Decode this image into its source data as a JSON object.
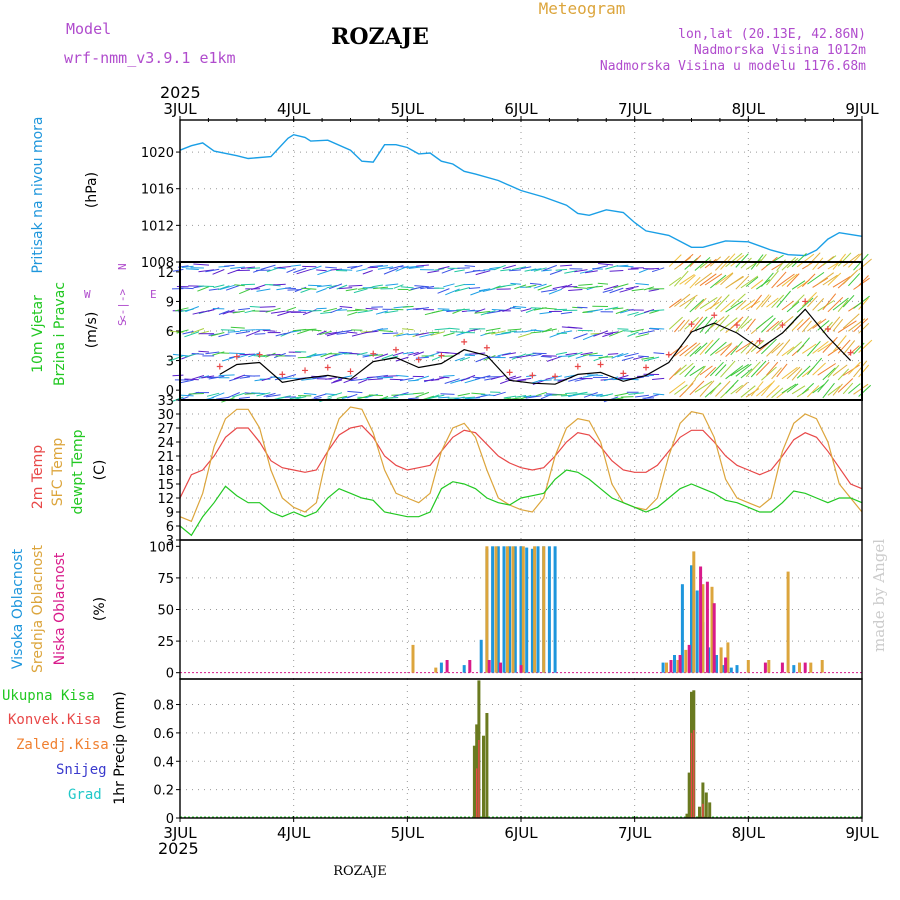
{
  "header": {
    "model_label": "Model",
    "model_value": "wrf-nmm_v3.9.1 e1km",
    "station": "ROZAJE",
    "meteogram": "Meteogram",
    "lonlat": "lon,lat (20.13E, 42.86N)",
    "elevation": "Nadmorska Visina 1012m",
    "model_elevation": "Nadmorska Visina u modelu 1176.68m",
    "year_top": "2025",
    "year_bottom": "2025",
    "footer_station": "ROZAJE",
    "credit": "made by Angel"
  },
  "colors": {
    "pressure": "#1a9fe6",
    "temp2m": "#e84848",
    "sfc": "#dca53c",
    "dewpoint": "#22c822",
    "high_cloud": "#1e96dc",
    "mid_cloud": "#dca53c",
    "low_cloud": "#d81a8a",
    "total_precip": "#22c822",
    "conv_precip": "#e84848",
    "frozen_precip": "#f08030",
    "snow": "#3a3acd",
    "hail": "#20c8c8",
    "wind_label": "#22c822",
    "wind_arrows": [
      "#5a1ecd",
      "#3a52e6",
      "#1ea0e6",
      "#20c8a0",
      "#3cc83c",
      "#a8d040",
      "#e0b040",
      "#f08030",
      "#f0c040"
    ]
  },
  "chart_data": [
    {
      "id": "pressure",
      "type": "line",
      "ylabel": "Pritisak na nivou mora",
      "unit": "(hPa)",
      "ylim": [
        1008,
        1023.5
      ],
      "yticks": [
        "1020",
        "1016",
        "1012",
        "1008"
      ],
      "x_days": [
        "3JUL",
        "4JUL",
        "5JUL",
        "6JUL",
        "7JUL",
        "8JUL",
        "9JUL"
      ],
      "x": [
        0,
        0.1,
        0.2,
        0.3,
        0.5,
        0.6,
        0.8,
        0.95,
        1.0,
        1.1,
        1.15,
        1.3,
        1.5,
        1.6,
        1.7,
        1.8,
        1.9,
        2.0,
        2.1,
        2.2,
        2.3,
        2.4,
        2.5,
        2.6,
        2.8,
        3.0,
        3.2,
        3.4,
        3.5,
        3.6,
        3.75,
        3.9,
        4.0,
        4.1,
        4.3,
        4.5,
        4.6,
        4.8,
        5.0,
        5.2,
        5.35,
        5.5,
        5.6,
        5.7,
        5.8,
        6.0
      ],
      "values": [
        1020.2,
        1020.7,
        1021.0,
        1020.1,
        1019.6,
        1019.3,
        1019.5,
        1021.5,
        1021.9,
        1021.6,
        1021.2,
        1021.3,
        1020.2,
        1019.0,
        1018.9,
        1020.8,
        1020.8,
        1020.5,
        1019.8,
        1019.9,
        1019.0,
        1018.7,
        1017.9,
        1017.6,
        1016.9,
        1015.8,
        1015.1,
        1014.2,
        1013.3,
        1013.1,
        1013.7,
        1013.4,
        1012.3,
        1011.4,
        1010.9,
        1009.6,
        1009.6,
        1010.3,
        1010.2,
        1009.3,
        1008.8,
        1008.7,
        1009.3,
        1010.5,
        1011.2,
        1010.8
      ]
    },
    {
      "id": "wind",
      "type": "line",
      "ylabel": "10m Vjetar",
      "ylabel2": "Brzina i Pravac",
      "unit": "(m/s)",
      "ylim": [
        -1,
        13
      ],
      "yticks": [
        "12",
        "9",
        "6",
        "3",
        "0"
      ],
      "compass": {
        "n": "N",
        "s": "S",
        "w": "W",
        "e": "E",
        "arrows": "<-|->"
      },
      "x": [
        0.35,
        0.5,
        0.7,
        0.9,
        1.1,
        1.3,
        1.5,
        1.7,
        1.9,
        2.1,
        2.3,
        2.5,
        2.7,
        2.9,
        3.1,
        3.3,
        3.5,
        3.7,
        3.9,
        4.1,
        4.3,
        4.5,
        4.7,
        4.9,
        5.1,
        5.3,
        5.5,
        5.7,
        5.9
      ],
      "values": [
        1.6,
        2.6,
        2.8,
        0.8,
        1.2,
        1.5,
        1.1,
        2.9,
        3.3,
        2.3,
        2.7,
        4.1,
        3.5,
        1.0,
        0.7,
        0.6,
        1.6,
        1.8,
        0.9,
        1.5,
        2.8,
        5.9,
        6.8,
        5.8,
        4.2,
        5.8,
        8.2,
        5.4,
        3.0
      ]
    },
    {
      "id": "temperature",
      "type": "line",
      "unit": "(C)",
      "labels": [
        "2m Temp",
        "SFC Temp",
        "dewpt Temp"
      ],
      "ylim": [
        3,
        33
      ],
      "yticks": [
        "33",
        "30",
        "27",
        "24",
        "21",
        "18",
        "15",
        "12",
        "9",
        "6",
        "3"
      ],
      "x": [
        0,
        0.1,
        0.2,
        0.3,
        0.4,
        0.5,
        0.6,
        0.7,
        0.8,
        0.9,
        1.0,
        1.1,
        1.2,
        1.3,
        1.4,
        1.5,
        1.6,
        1.7,
        1.8,
        1.9,
        2.0,
        2.1,
        2.2,
        2.3,
        2.4,
        2.5,
        2.6,
        2.7,
        2.8,
        2.9,
        3.0,
        3.1,
        3.2,
        3.3,
        3.4,
        3.5,
        3.6,
        3.7,
        3.8,
        3.9,
        4.0,
        4.1,
        4.2,
        4.3,
        4.4,
        4.5,
        4.6,
        4.7,
        4.8,
        4.9,
        5.0,
        5.1,
        5.2,
        5.3,
        5.4,
        5.5,
        5.6,
        5.7,
        5.8,
        5.9,
        6.0
      ],
      "series": [
        {
          "name": "2m Temp",
          "color_key": "temp2m",
          "values": [
            12,
            17,
            18,
            21,
            25,
            27,
            27,
            24,
            20,
            18.5,
            18,
            17.5,
            18,
            22,
            25.5,
            27,
            27.5,
            25,
            21,
            19,
            18,
            18.5,
            19,
            22,
            25,
            26.5,
            26,
            23.5,
            21,
            19.5,
            18.5,
            18,
            18.5,
            21,
            24,
            26,
            25.5,
            23,
            20,
            18,
            17.5,
            17.5,
            19,
            22,
            25,
            26.5,
            26.5,
            24,
            21,
            19,
            18,
            17,
            18,
            21,
            24.5,
            26,
            25,
            22,
            18.5,
            15,
            14
          ]
        },
        {
          "name": "SFC Temp",
          "color_key": "sfc",
          "values": [
            8,
            7,
            13,
            23,
            29,
            31,
            31,
            27,
            18,
            12,
            10,
            9,
            11,
            22,
            29,
            31.5,
            31,
            26,
            18,
            13,
            12,
            11,
            13,
            22,
            27,
            28,
            25,
            18,
            12,
            10.5,
            9.5,
            9,
            12,
            21,
            27,
            29,
            28.5,
            24,
            15,
            11,
            10,
            9.5,
            12,
            21,
            28,
            30.5,
            30,
            25,
            16,
            12,
            11,
            10,
            12,
            22,
            28,
            30,
            29,
            24,
            15,
            12,
            9
          ]
        },
        {
          "name": "dewpt Temp",
          "color_key": "dewpoint",
          "values": [
            6,
            4,
            8,
            11,
            14.5,
            12.5,
            11,
            11,
            9,
            8,
            9,
            8,
            9,
            12,
            14,
            13,
            12,
            11.5,
            9,
            8.5,
            8,
            8,
            9,
            14,
            15.5,
            15,
            14,
            12,
            11,
            10.5,
            12,
            12.5,
            13,
            16,
            18,
            17.5,
            16,
            14,
            12,
            11,
            10,
            9,
            10,
            12,
            14,
            15,
            14,
            13,
            11.5,
            11,
            10,
            9,
            9,
            11,
            13.5,
            13,
            12,
            11,
            12,
            12,
            11
          ]
        }
      ]
    },
    {
      "id": "cloud",
      "type": "bar",
      "labels": [
        "Visoka Oblacnost",
        "Srednja Oblacnost",
        "Niska Oblacnost"
      ],
      "unit": "(%)",
      "ylim": [
        -5,
        105
      ],
      "yticks": [
        "100",
        "75",
        "50",
        "25",
        "0"
      ],
      "series": [
        {
          "name": "Visoka Oblacnost",
          "color_key": "high_cloud",
          "x": [
            2.3,
            2.5,
            2.65,
            2.7,
            2.75,
            2.8,
            2.85,
            2.9,
            2.95,
            3.0,
            3.05,
            3.1,
            3.15,
            3.2,
            3.25,
            3.3,
            4.25,
            4.35,
            4.42,
            4.5,
            4.55,
            4.6,
            4.65,
            4.72,
            4.78,
            4.85,
            4.9,
            5.4,
            6.0
          ],
          "values": [
            8,
            6,
            26,
            98,
            100,
            100,
            100,
            100,
            100,
            100,
            99,
            98,
            100,
            100,
            100,
            100,
            8,
            14,
            70,
            85,
            65,
            40,
            20,
            14,
            6,
            4,
            6,
            6,
            0
          ]
        },
        {
          "name": "Srednja Oblacnost",
          "color_key": "mid_cloud",
          "x": [
            2.05,
            2.25,
            2.7,
            2.78,
            2.88,
            2.93,
            3.02,
            3.12,
            3.2,
            4.28,
            4.38,
            4.45,
            4.52,
            4.6,
            4.68,
            4.76,
            4.82,
            5.0,
            5.18,
            5.35,
            5.45,
            5.55,
            5.65
          ],
          "values": [
            22,
            4,
            100,
            100,
            100,
            100,
            100,
            100,
            100,
            8,
            10,
            18,
            96,
            70,
            68,
            20,
            24,
            10,
            10,
            80,
            8,
            8,
            10
          ]
        },
        {
          "name": "Niska Oblacnost",
          "color_key": "low_cloud",
          "x": [
            2.35,
            2.55,
            2.72,
            2.82,
            3.0,
            4.32,
            4.4,
            4.48,
            4.58,
            4.64,
            4.7,
            4.8,
            5.15,
            5.3,
            5.5
          ],
          "values": [
            10,
            10,
            10,
            8,
            6,
            10,
            14,
            22,
            84,
            72,
            55,
            12,
            8,
            8,
            8
          ]
        }
      ]
    },
    {
      "id": "precip",
      "type": "bar",
      "labels": [
        "Ukupna Kisa",
        "Konvek.Kisa",
        "Zaledj.Kisa",
        "Snijeg",
        "Grad"
      ],
      "ylabel": "1hr Precip (mm)",
      "ylim": [
        0,
        0.98
      ],
      "yticks": [
        "0.8",
        "0.6",
        "0.4",
        "0.2",
        "0"
      ],
      "series": [
        {
          "name": "Ukupna Kisa",
          "color_key": "total_precip",
          "x": [
            2.59,
            2.61,
            2.63,
            2.67,
            2.7,
            4.46,
            4.48,
            4.5,
            4.52,
            4.57,
            4.6,
            4.63,
            4.66
          ],
          "values": [
            0.51,
            0.66,
            0.97,
            0.58,
            0.74,
            0.03,
            0.32,
            0.89,
            0.9,
            0.08,
            0.25,
            0.18,
            0.11
          ]
        },
        {
          "name": "Konvek.Kisa",
          "color_key": "conv_precip",
          "x": [
            2.61,
            2.63,
            4.5,
            4.52,
            4.6
          ],
          "values": [
            0.35,
            0.55,
            0.6,
            0.62,
            0.1
          ]
        }
      ]
    }
  ]
}
